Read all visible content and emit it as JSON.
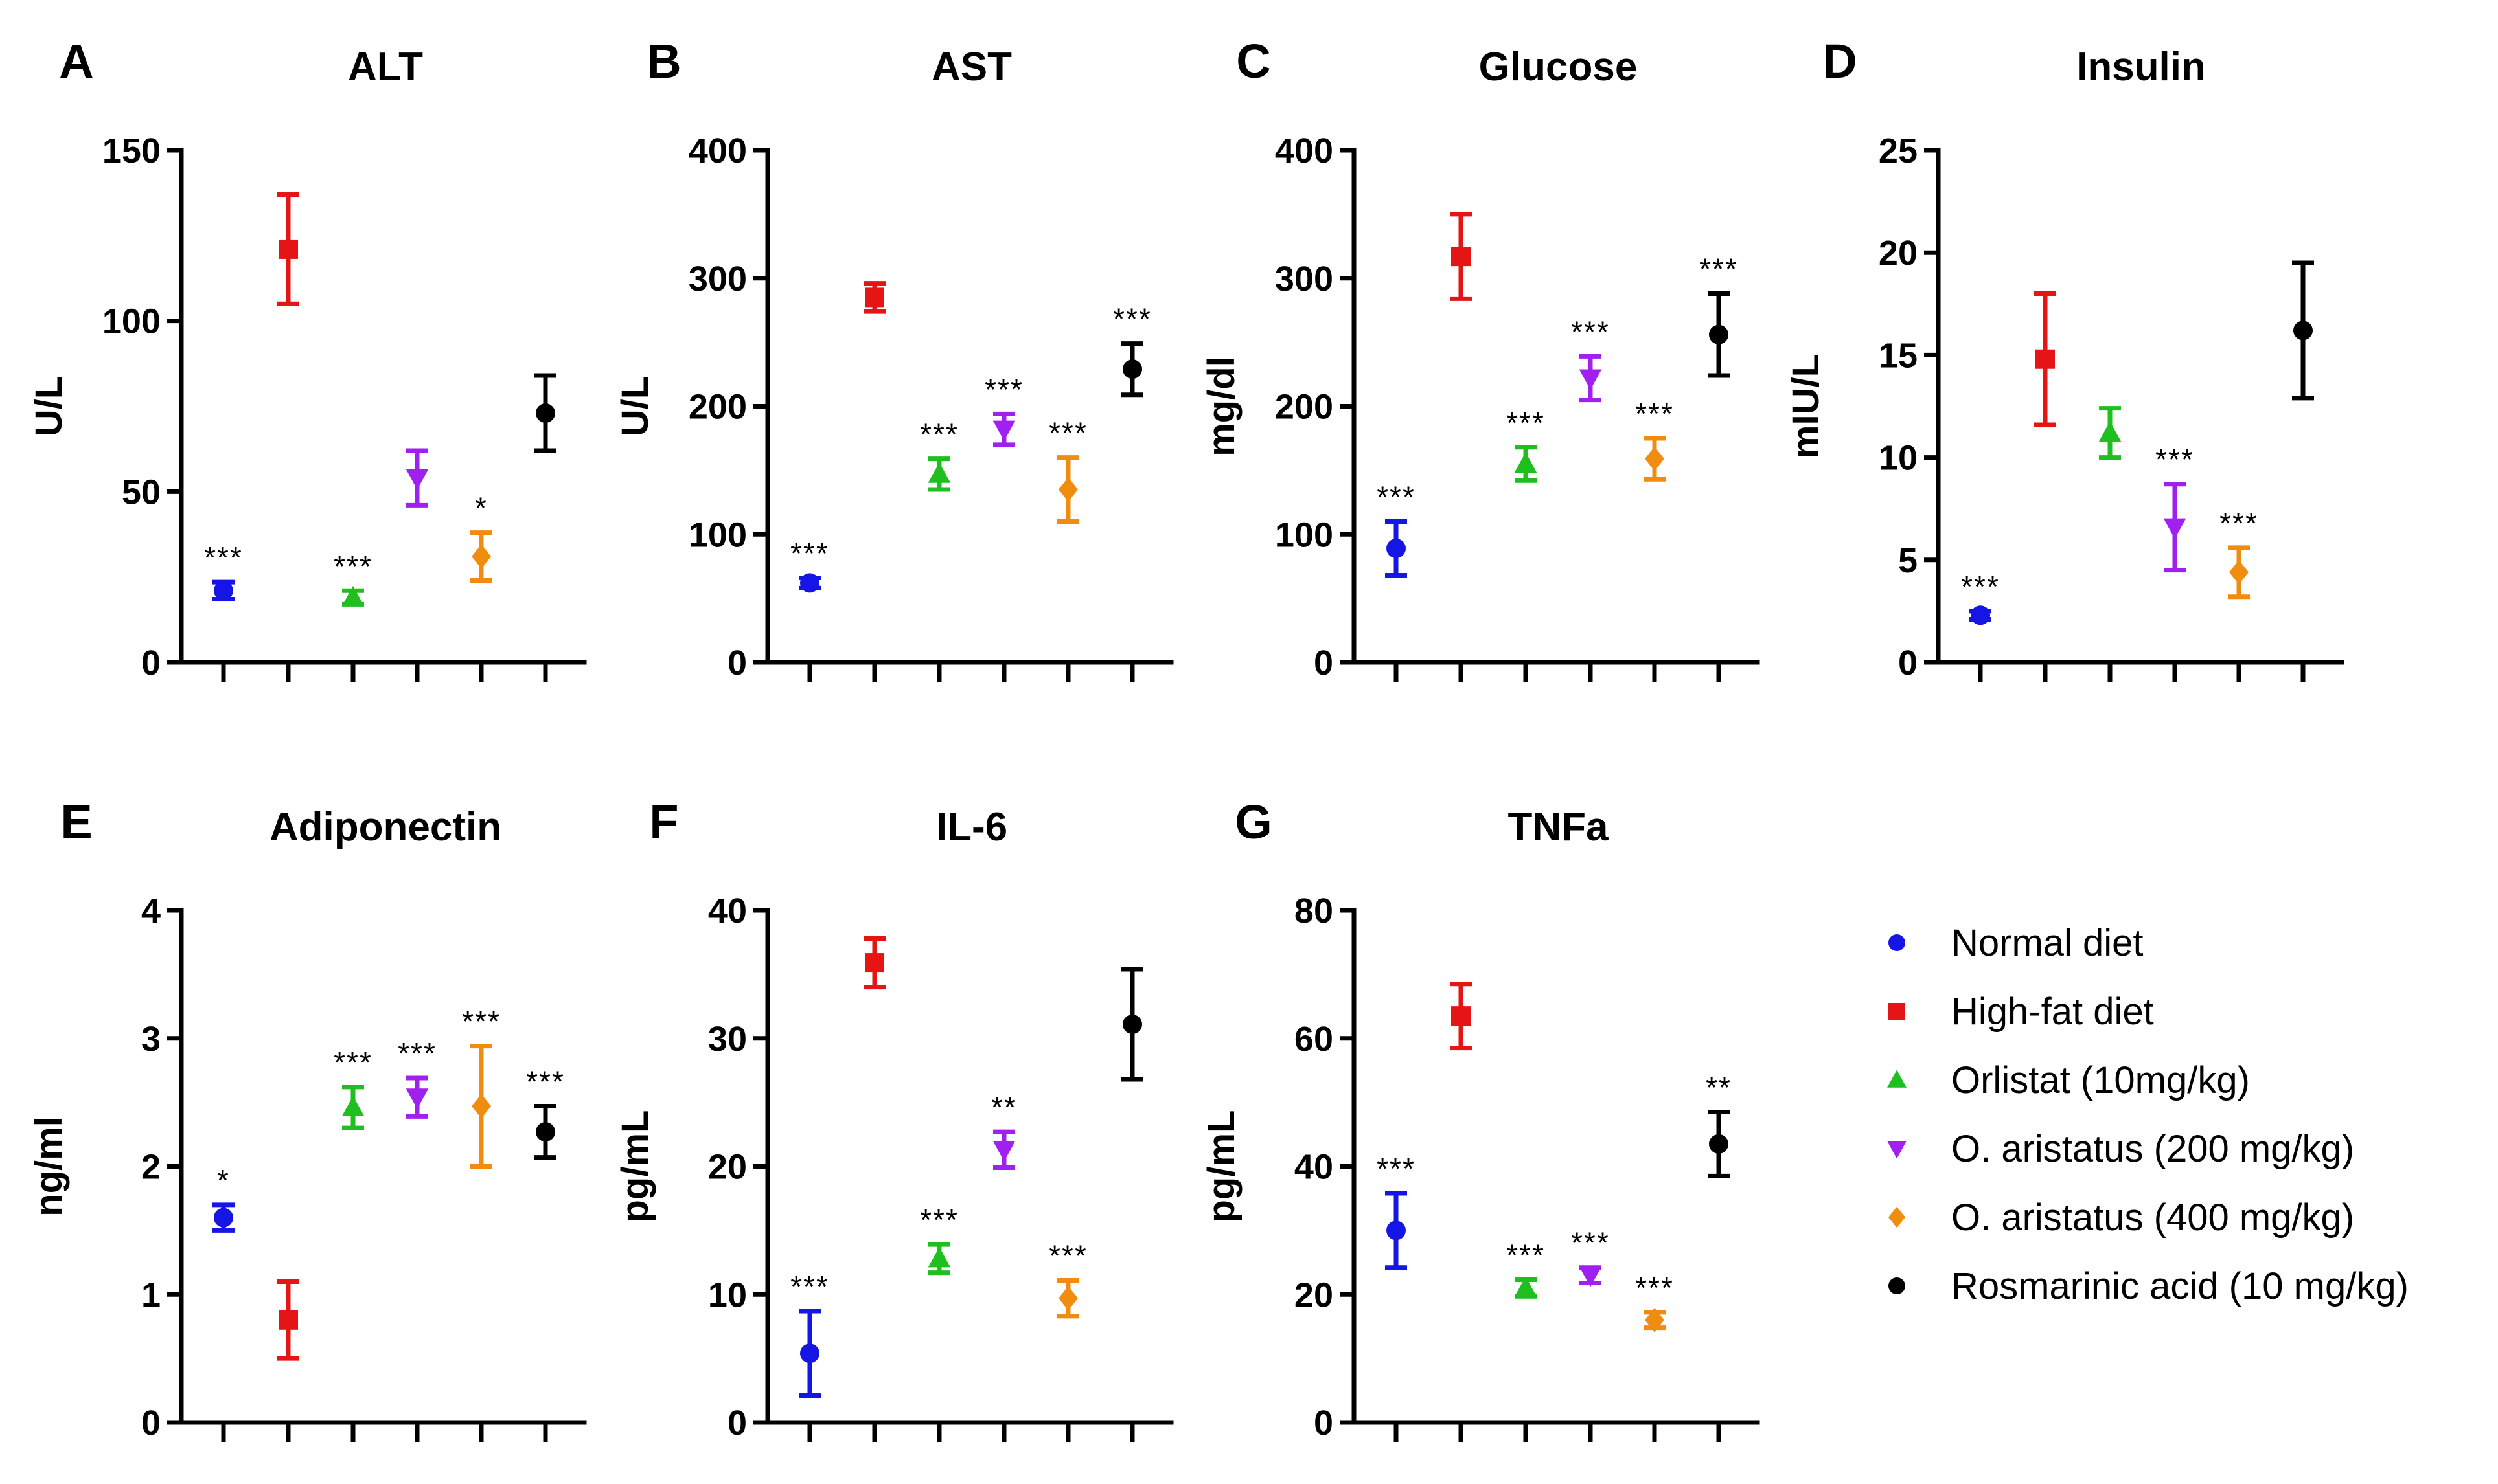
{
  "legend": [
    {
      "label": "Normal diet",
      "color": "#1515e6",
      "marker": "circle"
    },
    {
      "label": "High-fat diet",
      "color": "#e61515",
      "marker": "square"
    },
    {
      "label": "Orlistat (10mg/kg)",
      "color": "#1fbf1f",
      "marker": "triangle-up"
    },
    {
      "label": "O. aristatus (200 mg/kg)",
      "color": "#a020f0",
      "marker": "triangle-down"
    },
    {
      "label": "O. aristatus (400 mg/kg)",
      "color": "#f08c10",
      "marker": "diamond"
    },
    {
      "label": "Rosmarinic acid (10 mg/kg)",
      "color": "#000000",
      "marker": "circle"
    }
  ],
  "chart_data": [
    {
      "type": "scatter",
      "panel": "A",
      "title": "ALT",
      "ylabel": "U/L",
      "ylim": [
        0,
        150
      ],
      "yticks": [
        0,
        50,
        100,
        150
      ],
      "groups": [
        "Normal diet",
        "High-fat diet",
        "Orlistat (10mg/kg)",
        "O. aristatus (200 mg/kg)",
        "O. aristatus (400 mg/kg)",
        "Rosmarinic acid (10 mg/kg)"
      ],
      "means": [
        21,
        121,
        19,
        54,
        31,
        73
      ],
      "errors": [
        2.5,
        16,
        2,
        8,
        7,
        11
      ],
      "significance": [
        "***",
        "",
        "***",
        "",
        "*",
        ""
      ]
    },
    {
      "type": "scatter",
      "panel": "B",
      "title": "AST",
      "ylabel": "U/L",
      "ylim": [
        0,
        400
      ],
      "yticks": [
        0,
        100,
        200,
        300,
        400
      ],
      "groups": [
        "Normal diet",
        "High-fat diet",
        "Orlistat (10mg/kg)",
        "O. aristatus (200 mg/kg)",
        "O. aristatus (400 mg/kg)",
        "Rosmarinic acid (10 mg/kg)"
      ],
      "means": [
        62,
        285,
        147,
        182,
        135,
        229
      ],
      "errors": [
        4,
        11,
        12,
        12,
        25,
        20
      ],
      "significance": [
        "***",
        "",
        "***",
        "***",
        "***",
        "***"
      ]
    },
    {
      "type": "scatter",
      "panel": "C",
      "title": "Glucose",
      "ylabel": "mg/dl",
      "ylim": [
        0,
        400
      ],
      "yticks": [
        0,
        100,
        200,
        300,
        400
      ],
      "groups": [
        "Normal diet",
        "High-fat diet",
        "Orlistat (10mg/kg)",
        "O. aristatus (200 mg/kg)",
        "O. aristatus (400 mg/kg)",
        "Rosmarinic acid (10 mg/kg)"
      ],
      "means": [
        89,
        317,
        155,
        222,
        159,
        256
      ],
      "errors": [
        21,
        33,
        13,
        17,
        16,
        32
      ],
      "significance": [
        "***",
        "",
        "***",
        "***",
        "***",
        "***"
      ]
    },
    {
      "type": "scatter",
      "panel": "D",
      "title": "Insulin",
      "ylabel": "mIU/L",
      "ylim": [
        0,
        25
      ],
      "yticks": [
        0,
        5,
        10,
        15,
        20,
        25
      ],
      "groups": [
        "Normal diet",
        "High-fat diet",
        "Orlistat (10mg/kg)",
        "O. aristatus (200 mg/kg)",
        "O. aristatus (400 mg/kg)",
        "Rosmarinic acid (10 mg/kg)"
      ],
      "means": [
        2.3,
        14.8,
        11.2,
        6.6,
        4.4,
        16.2
      ],
      "errors": [
        0.2,
        3.2,
        1.2,
        2.1,
        1.2,
        3.3
      ],
      "significance": [
        "***",
        "",
        "",
        "***",
        "***",
        ""
      ]
    },
    {
      "type": "scatter",
      "panel": "E",
      "title": "Adiponectin",
      "ylabel": "ng/ml",
      "ylim": [
        0,
        4
      ],
      "yticks": [
        0,
        1,
        2,
        3,
        4
      ],
      "groups": [
        "Normal diet",
        "High-fat diet",
        "Orlistat (10mg/kg)",
        "O. aristatus (200 mg/kg)",
        "O. aristatus (400 mg/kg)",
        "Rosmarinic acid (10 mg/kg)"
      ],
      "means": [
        1.6,
        0.8,
        2.46,
        2.54,
        2.47,
        2.27
      ],
      "errors": [
        0.1,
        0.3,
        0.16,
        0.15,
        0.47,
        0.2
      ],
      "significance": [
        "*",
        "",
        "***",
        "***",
        "***",
        "***"
      ]
    },
    {
      "type": "scatter",
      "panel": "F",
      "title": "IL-6",
      "ylabel": "pg/mL",
      "ylim": [
        0,
        40
      ],
      "yticks": [
        0,
        10,
        20,
        30,
        40
      ],
      "groups": [
        "Normal diet",
        "High-fat diet",
        "Orlistat (10mg/kg)",
        "O. aristatus (200 mg/kg)",
        "O. aristatus (400 mg/kg)",
        "Rosmarinic acid (10 mg/kg)"
      ],
      "means": [
        5.4,
        35.9,
        12.8,
        21.3,
        9.7,
        31.1
      ],
      "errors": [
        3.3,
        1.9,
        1.1,
        1.4,
        1.4,
        4.3
      ],
      "significance": [
        "***",
        "",
        "***",
        "**",
        "***",
        ""
      ]
    },
    {
      "type": "scatter",
      "panel": "G",
      "title": "TNFa",
      "ylabel": "pg/mL",
      "ylim": [
        0,
        80
      ],
      "yticks": [
        0,
        20,
        40,
        60,
        80
      ],
      "groups": [
        "Normal diet",
        "High-fat diet",
        "Orlistat (10mg/kg)",
        "O. aristatus (200 mg/kg)",
        "O. aristatus (400 mg/kg)",
        "Rosmarinic acid (10 mg/kg)"
      ],
      "means": [
        30,
        63.5,
        21,
        23,
        16,
        43.5
      ],
      "errors": [
        5.8,
        5,
        1.3,
        1.2,
        1.2,
        5
      ],
      "significance": [
        "***",
        "",
        "***",
        "***",
        "***",
        "**"
      ]
    }
  ]
}
